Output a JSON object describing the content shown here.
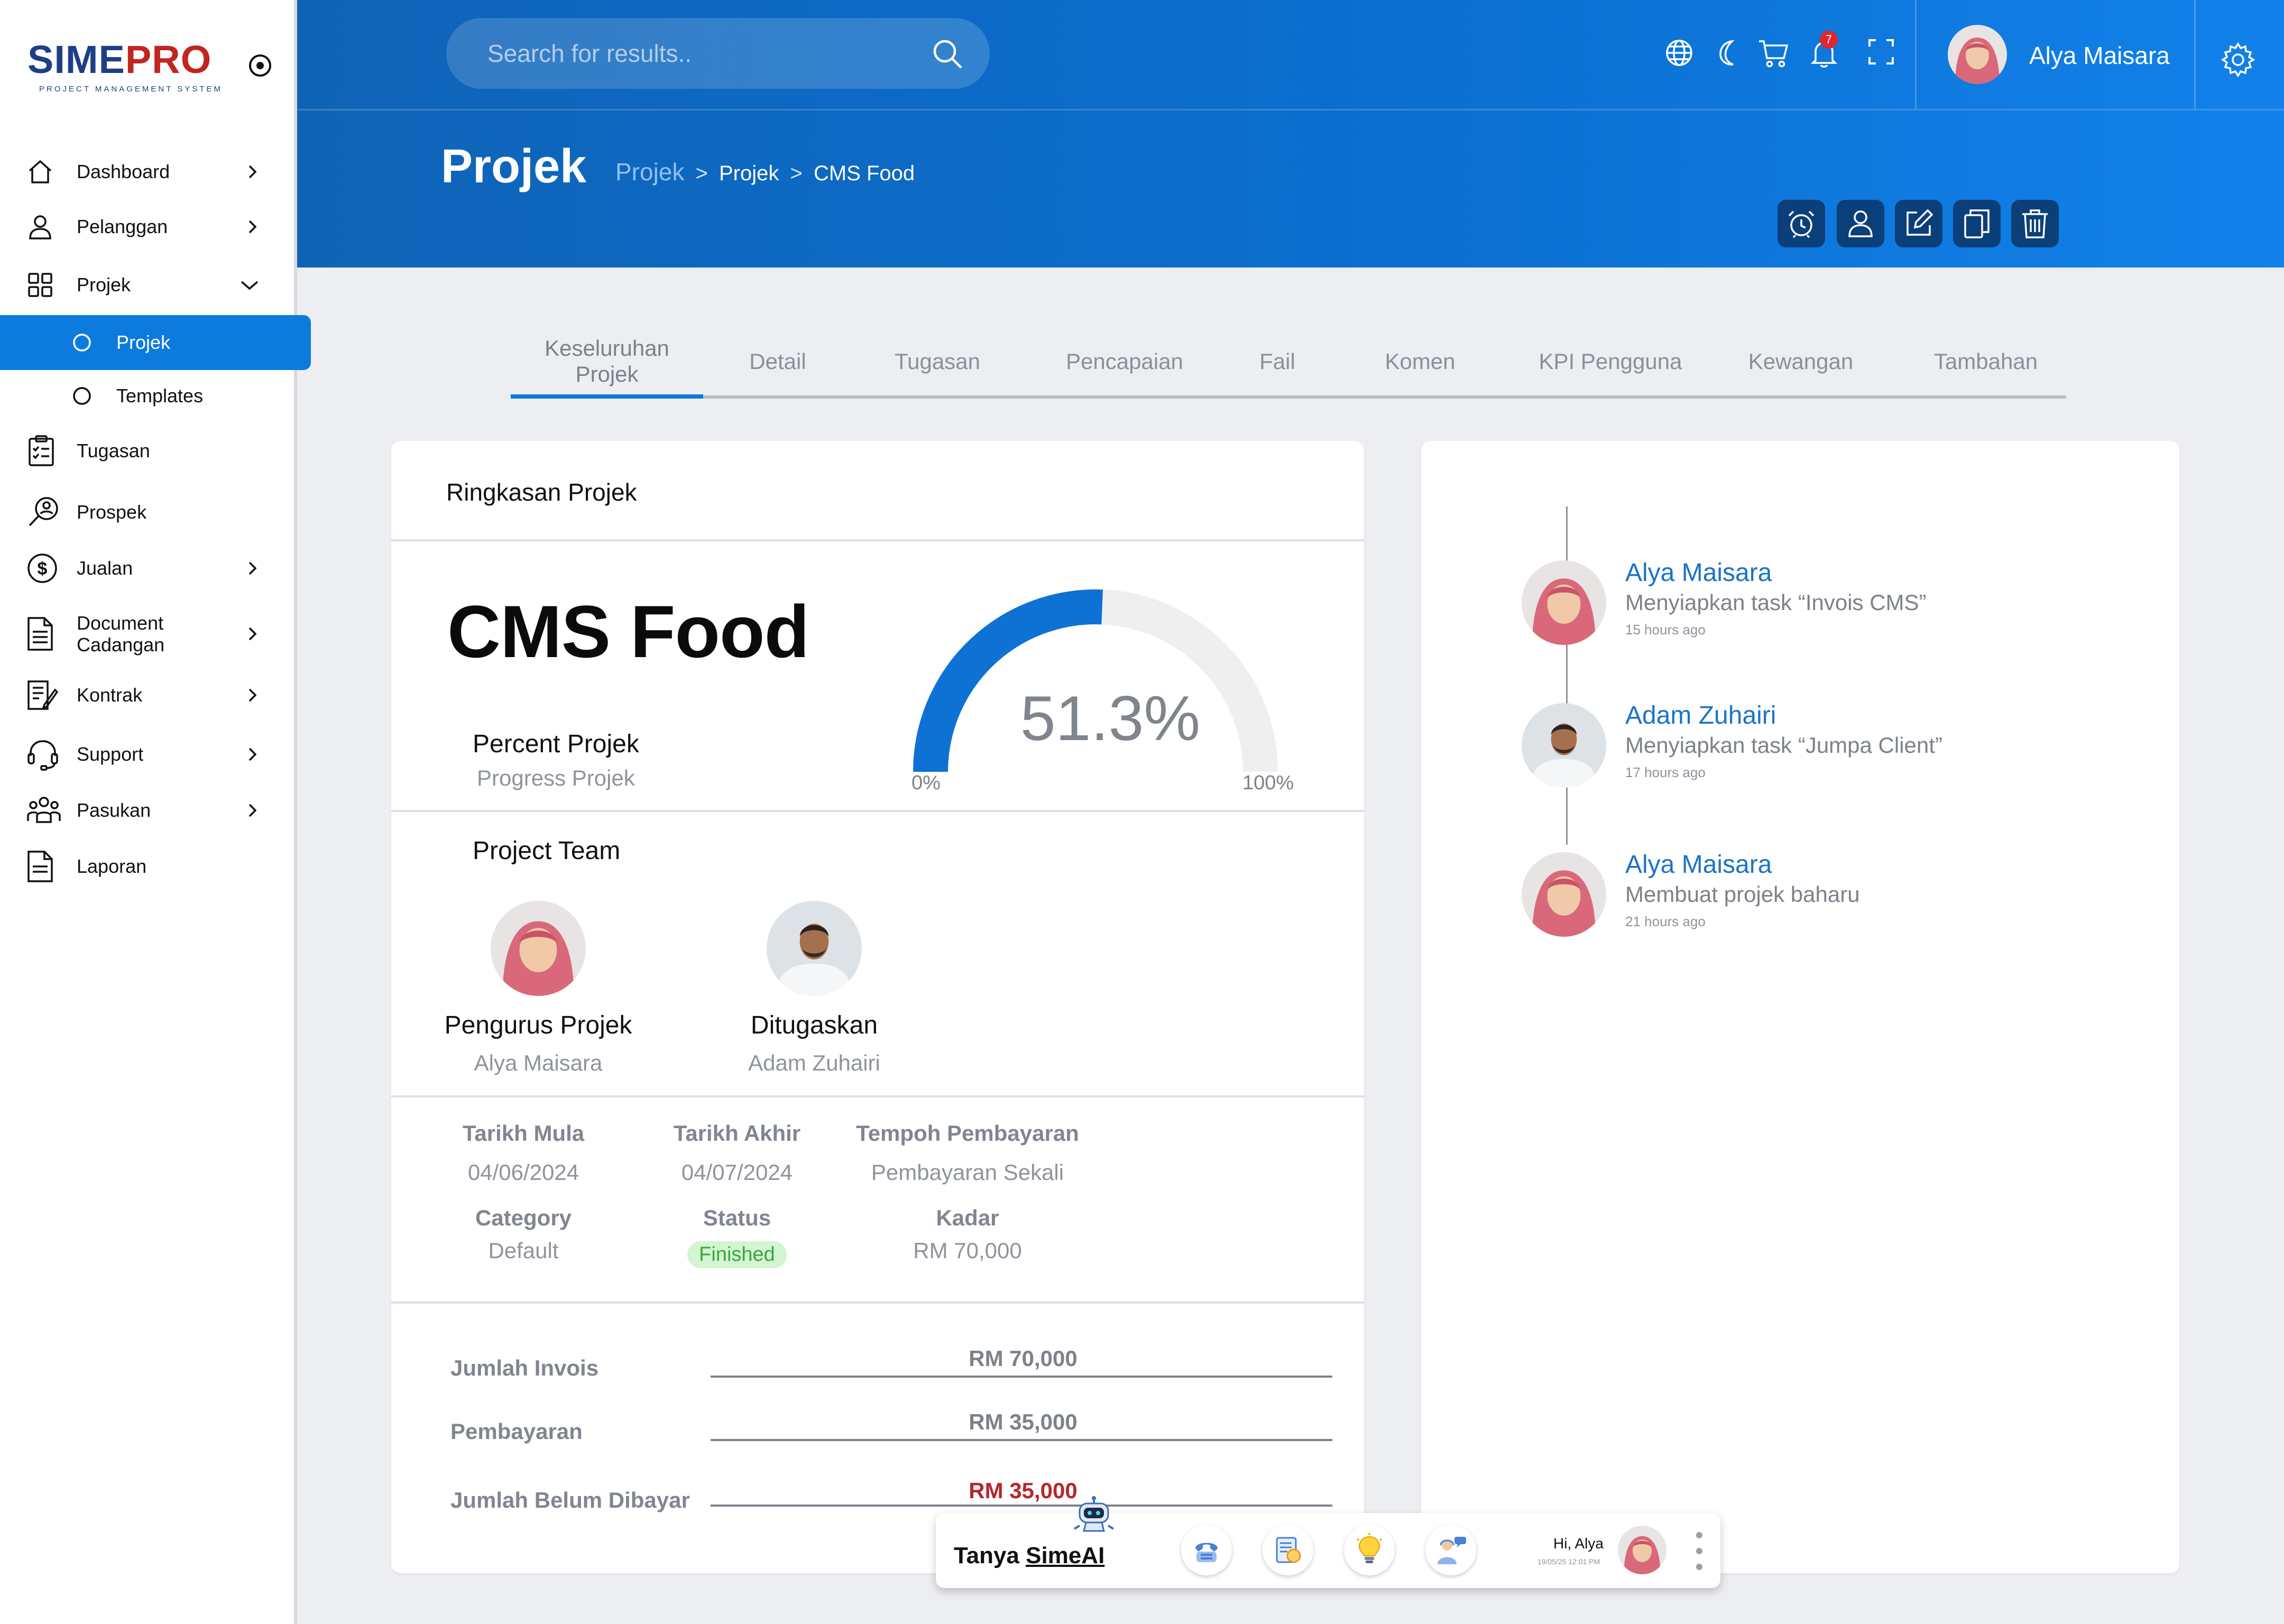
{
  "brand": {
    "name_part1": "SIME",
    "name_part2": "PRO",
    "tagline": "PROJECT MANAGEMENT SYSTEM"
  },
  "sidebar": {
    "items": [
      {
        "label": "Dashboard",
        "icon": "home-icon",
        "chevron": "right"
      },
      {
        "label": "Pelanggan",
        "icon": "user-icon",
        "chevron": "right"
      },
      {
        "label": "Projek",
        "icon": "grid-icon",
        "chevron": "down"
      },
      {
        "label": "Projek",
        "icon": "circle-icon",
        "sub": true,
        "active": true
      },
      {
        "label": "Templates",
        "icon": "circle-icon",
        "sub": true
      },
      {
        "label": "Tugasan",
        "icon": "checklist-icon"
      },
      {
        "label": "Prospek",
        "icon": "prospect-icon"
      },
      {
        "label": "Jualan",
        "icon": "dollar-icon",
        "chevron": "right"
      },
      {
        "label": "Document Cadangan",
        "icon": "document-icon",
        "chevron": "right"
      },
      {
        "label": "Kontrak",
        "icon": "contract-icon",
        "chevron": "right"
      },
      {
        "label": "Support",
        "icon": "headset-icon",
        "chevron": "right"
      },
      {
        "label": "Pasukan",
        "icon": "team-icon",
        "chevron": "right"
      },
      {
        "label": "Laporan",
        "icon": "report-icon"
      }
    ]
  },
  "topbar": {
    "search_placeholder": "Search for results..",
    "notification_count": "7",
    "user_name": "Alya Maisara",
    "icons": [
      "globe-icon",
      "moon-icon",
      "cart-icon",
      "bell-icon",
      "fullscreen-icon",
      "gear-icon"
    ]
  },
  "header": {
    "title": "Projek",
    "breadcrumb": {
      "root": "Projek",
      "sep": ">",
      "middle": "Projek",
      "current": "CMS Food"
    },
    "actions": [
      "alarm-icon",
      "user-icon",
      "edit-icon",
      "copy-icon",
      "trash-icon"
    ]
  },
  "tabs": [
    {
      "label": "Keseluruhan Projek",
      "active": true
    },
    {
      "label": "Detail"
    },
    {
      "label": "Tugasan"
    },
    {
      "label": "Pencapaian"
    },
    {
      "label": "Fail"
    },
    {
      "label": "Komen"
    },
    {
      "label": "KPI Pengguna"
    },
    {
      "label": "Kewangan"
    },
    {
      "label": "Tambahan"
    }
  ],
  "summary": {
    "title": "Ringkasan Projek",
    "project_name": "CMS Food",
    "percent_label": "Percent Projek",
    "percent_sublabel": "Progress Projek",
    "progress_fraction": 0.513,
    "gauge_value": "51.3%",
    "gauge_min": "0%",
    "gauge_max": "100%",
    "team_title": "Project Team",
    "team": [
      {
        "role": "Pengurus Projek",
        "name": "Alya Maisara"
      },
      {
        "role": "Ditugaskan",
        "name": "Adam Zuhairi"
      }
    ],
    "info": {
      "start_label": "Tarikh Mula",
      "start": "04/06/2024",
      "end_label": "Tarikh Akhir",
      "end": "04/07/2024",
      "payment_term_label": "Tempoh Pembayaran",
      "payment_term": "Pembayaran Sekali",
      "category_label": "Category",
      "category": "Default",
      "status_label": "Status",
      "status": "Finished",
      "rate_label": "Kadar",
      "rate": "RM 70,000"
    },
    "finance": [
      {
        "label": "Jumlah Invois",
        "value": "RM 70,000"
      },
      {
        "label": "Pembayaran",
        "value": "RM 35,000"
      },
      {
        "label": "Jumlah Belum Dibayar",
        "value": "RM 35,000",
        "highlight": "#b5262b"
      }
    ]
  },
  "activity": [
    {
      "name": "Alya Maisara",
      "text": "Menyiapkan task “Invois CMS”",
      "time": "15 hours ago"
    },
    {
      "name": "Adam Zuhairi",
      "text": "Menyiapkan task “Jumpa Client”",
      "time": "17 hours ago"
    },
    {
      "name": "Alya Maisara",
      "text": "Membuat projek baharu",
      "time": "21 hours ago"
    }
  ],
  "chat_dock": {
    "label_prefix": "Tanya ",
    "label_name": "SimeAI",
    "greeting": "Hi, Alya",
    "timestamp": "19/05/25 12:01 PM"
  },
  "colors": {
    "primary": "#0c7bdd",
    "header_dark": "#0f63b6",
    "action_button": "#0b3f7a",
    "status_success": "#36a83a",
    "danger": "#b5262b"
  }
}
